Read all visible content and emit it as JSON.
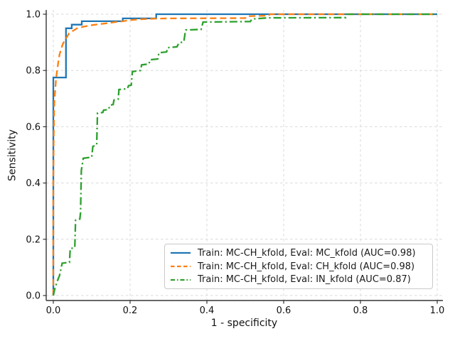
{
  "figure": {
    "background": "#ffffff",
    "grid_color": "#d9d9d9",
    "spine_color": "#333333",
    "text_color": "#111111"
  },
  "chart_data": {
    "type": "line",
    "subtype": "roc-curves",
    "title": "",
    "xlabel": "1 - specificity",
    "ylabel": "Sensitivity",
    "xlim": [
      0.0,
      1.0
    ],
    "ylim": [
      0.0,
      1.0
    ],
    "grid": true,
    "legend_position": "lower right",
    "xtick_values": [
      0,
      0.2,
      0.4,
      0.6,
      0.8,
      1.0
    ],
    "xticks": [
      "0.0",
      "0.2",
      "0.4",
      "0.6",
      "0.8",
      "1.0"
    ],
    "ytick_values": [
      0,
      0.2,
      0.4,
      0.6,
      0.8,
      1.0
    ],
    "yticks": [
      "0.0",
      "0.2",
      "0.4",
      "0.6",
      "0.8",
      "1.0"
    ],
    "series": [
      {
        "name": "Train: MC-CH_kfold, Eval: MC_kfold (AUC=0.98)",
        "auc": 0.98,
        "color": "#1f77b4",
        "style": "solid",
        "points": [
          [
            0,
            0
          ],
          [
            0,
            0.775
          ],
          [
            0.033,
            0.775
          ],
          [
            0.033,
            0.95
          ],
          [
            0.048,
            0.95
          ],
          [
            0.048,
            0.963
          ],
          [
            0.074,
            0.963
          ],
          [
            0.074,
            0.975
          ],
          [
            0.181,
            0.975
          ],
          [
            0.181,
            0.985
          ],
          [
            0.268,
            0.985
          ],
          [
            0.268,
            1.0
          ],
          [
            1,
            1.0
          ]
        ]
      },
      {
        "name": "Train: MC-CH_kfold, Eval: CH_kfold (AUC=0.98)",
        "auc": 0.98,
        "color": "#ff7f0e",
        "style": "dashed",
        "points": [
          [
            0,
            0
          ],
          [
            0,
            0.4
          ],
          [
            0.001,
            0.55
          ],
          [
            0.002,
            0.66
          ],
          [
            0.003,
            0.7
          ],
          [
            0.005,
            0.73
          ],
          [
            0.007,
            0.77
          ],
          [
            0.01,
            0.8
          ],
          [
            0.013,
            0.83
          ],
          [
            0.016,
            0.855
          ],
          [
            0.02,
            0.875
          ],
          [
            0.025,
            0.895
          ],
          [
            0.03,
            0.908
          ],
          [
            0.036,
            0.92
          ],
          [
            0.041,
            0.932
          ],
          [
            0.05,
            0.94
          ],
          [
            0.062,
            0.95
          ],
          [
            0.08,
            0.956
          ],
          [
            0.095,
            0.96
          ],
          [
            0.115,
            0.964
          ],
          [
            0.14,
            0.968
          ],
          [
            0.16,
            0.972
          ],
          [
            0.181,
            0.975
          ],
          [
            0.2,
            0.979
          ],
          [
            0.225,
            0.982
          ],
          [
            0.26,
            0.984
          ],
          [
            0.3,
            0.985
          ],
          [
            0.5,
            0.986
          ],
          [
            0.504,
            0.993
          ],
          [
            0.56,
            0.995
          ],
          [
            0.565,
            1.0
          ],
          [
            1,
            1.0
          ]
        ]
      },
      {
        "name": "Train: MC-CH_kfold, Eval: IN_kfold (AUC=0.87)",
        "auc": 0.87,
        "color": "#2ca02c",
        "style": "dashdot",
        "points": [
          [
            0,
            0
          ],
          [
            0.004,
            0.025
          ],
          [
            0.01,
            0.05
          ],
          [
            0.016,
            0.07
          ],
          [
            0.02,
            0.095
          ],
          [
            0.023,
            0.115
          ],
          [
            0.042,
            0.118
          ],
          [
            0.044,
            0.167
          ],
          [
            0.056,
            0.17
          ],
          [
            0.058,
            0.268
          ],
          [
            0.069,
            0.272
          ],
          [
            0.071,
            0.295
          ],
          [
            0.073,
            0.445
          ],
          [
            0.076,
            0.47
          ],
          [
            0.078,
            0.488
          ],
          [
            0.1,
            0.492
          ],
          [
            0.103,
            0.53
          ],
          [
            0.113,
            0.535
          ],
          [
            0.115,
            0.648
          ],
          [
            0.129,
            0.651
          ],
          [
            0.131,
            0.659
          ],
          [
            0.144,
            0.661
          ],
          [
            0.147,
            0.676
          ],
          [
            0.156,
            0.679
          ],
          [
            0.158,
            0.695
          ],
          [
            0.169,
            0.698
          ],
          [
            0.171,
            0.732
          ],
          [
            0.193,
            0.735
          ],
          [
            0.196,
            0.746
          ],
          [
            0.203,
            0.748
          ],
          [
            0.206,
            0.796
          ],
          [
            0.227,
            0.8
          ],
          [
            0.23,
            0.82
          ],
          [
            0.249,
            0.823
          ],
          [
            0.252,
            0.838
          ],
          [
            0.272,
            0.841
          ],
          [
            0.275,
            0.863
          ],
          [
            0.295,
            0.866
          ],
          [
            0.298,
            0.881
          ],
          [
            0.322,
            0.884
          ],
          [
            0.327,
            0.898
          ],
          [
            0.34,
            0.902
          ],
          [
            0.343,
            0.93
          ],
          [
            0.345,
            0.944
          ],
          [
            0.385,
            0.946
          ],
          [
            0.39,
            0.972
          ],
          [
            0.513,
            0.974
          ],
          [
            0.518,
            0.983
          ],
          [
            0.56,
            0.987
          ],
          [
            0.762,
            0.988
          ],
          [
            0.765,
            1.0
          ],
          [
            1,
            1.0
          ]
        ]
      }
    ]
  }
}
